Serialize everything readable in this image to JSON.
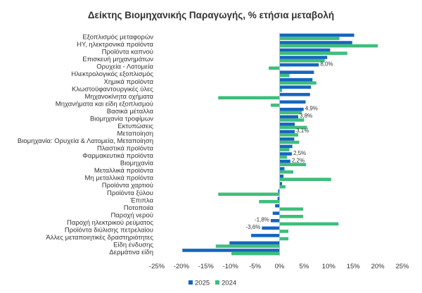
{
  "chart_data": {
    "type": "bar",
    "orientation": "horizontal",
    "title": "Δείκτης Βιομηχανικής Παραγωγής, % ετήσια μεταβολή",
    "categories": [
      "Εξοπλισμός μεταφορών",
      "ΗΥ, ηλεκτρονικά προϊόντα",
      "Προϊόντα καπνού",
      "Επισκευή μηχανημάτων",
      "Ορυχεία - Λατομεία",
      "Ηλεκτρολογικός εξοπλισμός",
      "Χημικά προϊόντα",
      "Κλωστοϋφαντουργικές ύλες",
      "Μηχανοκίνητα οχήματα",
      "Μηχανήματα και είδη εξοπλισμού",
      "Βασικά μέταλλα",
      "Βιομηχανία τροφίμων",
      "Εκτυπώσεις",
      "Μεταποίηση",
      "Βιομηχανία: Ορυχεία & Λατομεία, Μεταποίηση",
      "Πλαστικά προϊόντα",
      "Φαρμακευτικά προϊόντα",
      "Βιομηχανία",
      "Μεταλλικά προϊόντα",
      "Μη μεταλλικά προϊόντα",
      "Προϊόντα χαρτιού",
      "Προϊόντα ξύλου",
      "Έπιπλα",
      "Ποτοποιία",
      "Παροχή νερού",
      "Παροχή ηλεκτρικού ρεύματος",
      "Προϊόντα διύλισης πετρελαίου",
      "Άλλες μεταποιητικές δραστηριότητες",
      "Είδη ένδυσης",
      "Δερμάτινα είδη"
    ],
    "series": [
      {
        "name": "2025",
        "color": "#1565C0",
        "values": [
          15.2,
          14.8,
          10.3,
          9.7,
          8.0,
          7.0,
          6.7,
          6.4,
          6.2,
          5.3,
          4.9,
          3.8,
          3.1,
          3.1,
          3.0,
          2.6,
          2.5,
          2.2,
          1.0,
          0.8,
          0.5,
          -0.3,
          -0.4,
          -0.9,
          -1.4,
          -1.8,
          -3.6,
          -5.8,
          -10.2,
          -19.8
        ],
        "labels": [
          "",
          "",
          "",
          "",
          "8,0%",
          "",
          "",
          "",
          "",
          "",
          "4,9%",
          "3,8%",
          "",
          "3,1%",
          "",
          "",
          "2,5%",
          "2,2%",
          "",
          "",
          "",
          "",
          "",
          "",
          "",
          "-1,8%",
          "-3,6%",
          "",
          "",
          ""
        ]
      },
      {
        "name": "2024",
        "color": "#3DBE7A",
        "values": [
          12.2,
          20.0,
          13.8,
          9.2,
          -2.2,
          2.0,
          7.5,
          0.5,
          -12.5,
          -1.8,
          4.5,
          5.0,
          5.6,
          3.8,
          4.0,
          2.0,
          1.5,
          5.4,
          2.8,
          10.5,
          1.2,
          -12.5,
          -4.2,
          4.8,
          4.8,
          12.0,
          1.8,
          1.8,
          -13.0,
          -9.8
        ]
      }
    ],
    "xlim": [
      -25,
      25
    ],
    "xticks": [
      -25,
      -20,
      -15,
      -10,
      -5,
      0,
      5,
      10,
      15,
      20,
      25
    ],
    "xtick_labels": [
      "-25%",
      "-20%",
      "-15%",
      "-10%",
      "-5%",
      "0%",
      "5%",
      "10%",
      "15%",
      "20%",
      "25%"
    ],
    "legend": {
      "position": "bottom"
    },
    "grid": false
  }
}
